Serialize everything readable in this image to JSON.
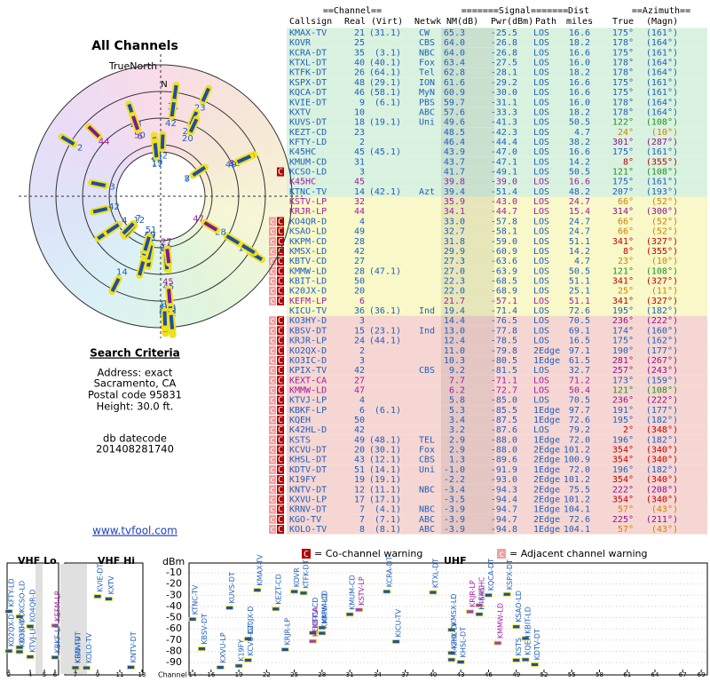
{
  "left": {
    "title": "All Channels",
    "north_label": "TrueNorth",
    "n_mark": "N",
    "search_title": "Search Criteria",
    "search_lines": [
      "Address: exact",
      "Sacramento, CA",
      "Postal code 95831",
      "Height: 30.0 ft."
    ],
    "db_label": "db datecode",
    "db_code": "201408281740",
    "link": "www.tvfool.com"
  },
  "table": {
    "group_headers": [
      "==Channel==",
      "=======Signal=======",
      "Dist",
      "==Azimuth=="
    ],
    "headers": [
      "Callsign",
      "Real",
      "(Virt)",
      "Netwk",
      "NM(dB)",
      "Pwr(dBm)",
      "Path",
      "miles",
      "True",
      "(Magn)"
    ],
    "rows": [
      [
        "KMAX-TV",
        "21",
        "(31.1)",
        "CW",
        "65.3",
        "-25.5",
        "LOS",
        "16.6",
        "175°",
        "(161°)"
      ],
      [
        "KOVR",
        "25",
        null,
        "CBS",
        "64.0",
        "-26.8",
        "LOS",
        "18.2",
        "178°",
        "(164°)"
      ],
      [
        "KCRA-DT",
        "35",
        "(3.1)",
        "NBC",
        "64.0",
        "-26.8",
        "LOS",
        "16.6",
        "175°",
        "(161°)"
      ],
      [
        "KTXL-DT",
        "40",
        "(40.1)",
        "Fox",
        "63.4",
        "-27.5",
        "LOS",
        "16.0",
        "178°",
        "(164°)"
      ],
      [
        "KTFK-DT",
        "26",
        "(64.1)",
        "Tel",
        "62.8",
        "-28.1",
        "LOS",
        "18.2",
        "178°",
        "(164°)"
      ],
      [
        "KSPX-DT",
        "48",
        "(29.1)",
        "ION",
        "61.6",
        "-29.2",
        "LOS",
        "16.6",
        "175°",
        "(161°)"
      ],
      [
        "KQCA-DT",
        "46",
        "(58.1)",
        "MyN",
        "60.9",
        "-30.0",
        "LOS",
        "16.6",
        "175°",
        "(161°)"
      ],
      [
        "KVIE-DT",
        "9",
        "(6.1)",
        "PBS",
        "59.7",
        "-31.1",
        "LOS",
        "16.0",
        "178°",
        "(164°)"
      ],
      [
        "KXTV",
        "10",
        null,
        "ABC",
        "57.6",
        "-33.3",
        "LOS",
        "18.2",
        "178°",
        "(164°)"
      ],
      [
        "KUVS-DT",
        "18",
        "(19.1)",
        "Uni",
        "49.6",
        "-41.3",
        "LOS",
        "50.5",
        "122°",
        "(108°)"
      ],
      [
        "KEZT-CD",
        "23",
        null,
        null,
        "48.5",
        "-42.3",
        "LOS",
        "4.7",
        "24°",
        "(10°)"
      ],
      [
        "KFTY-LD",
        "2",
        null,
        null,
        "46.4",
        "-44.4",
        "LOS",
        "38.2",
        "301°",
        "(287°)"
      ],
      [
        "K45HC",
        "45",
        "(45.1)",
        null,
        "43.9",
        "-47.0",
        "LOS",
        "16.6",
        "175°",
        "(161°)"
      ],
      [
        "KMUM-CD",
        "31",
        null,
        null,
        "43.7",
        "-47.1",
        "LOS",
        "14.2",
        "8°",
        "(355°)"
      ],
      [
        "KCSO-LD",
        "3",
        null,
        null,
        "41.7",
        "-49.1",
        "LOS",
        "50.5",
        "121°",
        "(108°)"
      ],
      [
        "K45HC",
        "45",
        null,
        null,
        "39.8",
        "-39.0",
        "LOS",
        "16.6",
        "175°",
        "(161°)"
      ],
      [
        "KTNC-TV",
        "14",
        "(42.1)",
        "Azt",
        "39.4",
        "-51.4",
        "LOS",
        "48.2",
        "207°",
        "(193°)"
      ],
      [
        "KSTV-LP",
        "32",
        null,
        null,
        "35.9",
        "-43.0",
        "LOS",
        "24.7",
        "66°",
        "(52°)"
      ],
      [
        "KRJR-LP",
        "44",
        null,
        null,
        "34.1",
        "-44.7",
        "LOS",
        "15.4",
        "314°",
        "(300°)"
      ],
      [
        "KO4QR-D",
        "4",
        null,
        null,
        "33.0",
        "-57.8",
        "LOS",
        "24.7",
        "66°",
        "(52°)"
      ],
      [
        "KSAO-LD",
        "49",
        null,
        null,
        "32.7",
        "-58.1",
        "LOS",
        "24.7",
        "66°",
        "(52°)"
      ],
      [
        "KKPM-CD",
        "28",
        null,
        null,
        "31.8",
        "-59.0",
        "LOS",
        "51.1",
        "341°",
        "(327°)"
      ],
      [
        "KMSX-LD",
        "42",
        null,
        null,
        "29.9",
        "-60.9",
        "LOS",
        "14.2",
        "8°",
        "(355°)"
      ],
      [
        "KBTV-CD",
        "27",
        null,
        null,
        "27.3",
        "-63.6",
        "LOS",
        "4.7",
        "23°",
        "(10°)"
      ],
      [
        "KMMW-LD",
        "28",
        "(47.1)",
        null,
        "27.0",
        "-63.9",
        "LOS",
        "50.5",
        "121°",
        "(108°)"
      ],
      [
        "KBIT-LD",
        "50",
        null,
        null,
        "22.3",
        "-68.5",
        "LOS",
        "51.1",
        "341°",
        "(327°)"
      ],
      [
        "K20JX-D",
        "20",
        null,
        null,
        "22.0",
        "-68.9",
        "LOS",
        "25.1",
        "25°",
        "(11°)"
      ],
      [
        "KEFM-LP",
        "6",
        null,
        null,
        "21.7",
        "-57.1",
        "LOS",
        "51.1",
        "341°",
        "(327°)"
      ],
      [
        "KICU-TV",
        "36",
        "(36.1)",
        "Ind",
        "19.4",
        "-71.4",
        "LOS",
        "72.6",
        "195°",
        "(182°)"
      ],
      [
        "KO3HY-D",
        "3",
        null,
        null,
        "14.4",
        "-76.5",
        "LOS",
        "70.5",
        "236°",
        "(222°)"
      ],
      [
        "KBSV-DT",
        "15",
        "(23.1)",
        "Ind",
        "13.0",
        "-77.8",
        "LOS",
        "69.1",
        "174°",
        "(160°)"
      ],
      [
        "KRJR-LP",
        "24",
        "(44.1)",
        null,
        "12.4",
        "-78.5",
        "LOS",
        "16.5",
        "175°",
        "(162°)"
      ],
      [
        "KO2QX-D",
        "2",
        null,
        null,
        "11.0",
        "-79.8",
        "2Edge",
        "97.1",
        "190°",
        "(177°)"
      ],
      [
        "KO3IC-D",
        "3",
        null,
        null,
        "10.3",
        "-80.5",
        "1Edge",
        "61.5",
        "281°",
        "(267°)"
      ],
      [
        "KPIX-TV",
        "42",
        null,
        "CBS",
        "9.2",
        "-81.5",
        "LOS",
        "32.7",
        "257°",
        "(243°)"
      ],
      [
        "KEXT-CA",
        "27",
        null,
        null,
        "7.7",
        "-71.1",
        "LOS",
        "71.2",
        "173°",
        "(159°)"
      ],
      [
        "KMMW-LD",
        "47",
        null,
        null,
        "6.2",
        "-72.7",
        "LOS",
        "50.4",
        "121°",
        "(108°)"
      ],
      [
        "KTVJ-LP",
        "4",
        null,
        null,
        "5.8",
        "-85.0",
        "LOS",
        "70.5",
        "236°",
        "(222°)"
      ],
      [
        "KBKF-LP",
        "6",
        "(6.1)",
        null,
        "5.3",
        "-85.5",
        "1Edge",
        "97.7",
        "191°",
        "(177°)"
      ],
      [
        "KQEH",
        "50",
        null,
        null,
        "3.4",
        "-87.5",
        "1Edge",
        "72.6",
        "195°",
        "(182°)"
      ],
      [
        "K42HL-D",
        "42",
        null,
        null,
        "3.2",
        "-87.6",
        "LOS",
        "79.2",
        "2°",
        "(348°)"
      ],
      [
        "KSTS",
        "49",
        "(48.1)",
        "TEL",
        "2.9",
        "-88.0",
        "1Edge",
        "72.0",
        "196°",
        "(182°)"
      ],
      [
        "KCVU-DT",
        "20",
        "(30.1)",
        "Fox",
        "2.9",
        "-88.0",
        "2Edge",
        "101.2",
        "354°",
        "(340°)"
      ],
      [
        "KHSL-DT",
        "43",
        "(12.1)",
        "CBS",
        "1.3",
        "-89.6",
        "2Edge",
        "100.9",
        "354°",
        "(340°)"
      ],
      [
        "KDTV-DT",
        "51",
        "(14.1)",
        "Uni",
        "-1.0",
        "-91.9",
        "1Edge",
        "72.0",
        "196°",
        "(182°)"
      ],
      [
        "K19FY",
        "19",
        "(19.1)",
        null,
        "-2.2",
        "-93.0",
        "2Edge",
        "101.2",
        "354°",
        "(340°)"
      ],
      [
        "KNTV-DT",
        "12",
        "(11.1)",
        "NBC",
        "-3.4",
        "-94.3",
        "2Edge",
        "75.5",
        "222°",
        "(208°)"
      ],
      [
        "KXVU-LP",
        "17",
        "(17.1)",
        null,
        "-3.5",
        "-94.4",
        "2Edge",
        "101.2",
        "354°",
        "(340°)"
      ],
      [
        "KRNV-DT",
        "7",
        "(4.1)",
        "NBC",
        "-3.9",
        "-94.7",
        "1Edge",
        "104.1",
        "57°",
        "(43°)"
      ],
      [
        "KGO-TV",
        "7",
        "(7.1)",
        "ABC",
        "-3.9",
        "-94.7",
        "2Edge",
        "72.6",
        "225°",
        "(211°)"
      ],
      [
        "KOLO-TV",
        "8",
        "(8.1)",
        "ABC",
        "-3.9",
        "-94.8",
        "1Edge",
        "104.1",
        "57°",
        "(43°)"
      ]
    ],
    "warnings": [
      null,
      null,
      null,
      null,
      null,
      null,
      null,
      null,
      null,
      null,
      null,
      null,
      null,
      null,
      "C",
      null,
      null,
      null,
      null,
      "cC",
      "cC",
      "cC",
      "cC",
      "cC",
      "cC",
      "cC",
      "cC",
      "cC",
      null,
      "cC",
      "cC",
      "cC",
      "cC",
      "cC",
      "cC",
      "cC",
      "cC",
      "cC",
      "cC",
      "cC",
      "cC",
      "cC",
      "cC",
      "cC",
      "cC",
      "cC",
      "cC",
      "cC",
      "cC",
      "cC",
      "cC"
    ],
    "row_colors": [
      "#1f5fbf",
      "#1f5fbf",
      "#1f5fbf",
      "#1f5fbf",
      "#1f5fbf",
      "#1f5fbf",
      "#1f5fbf",
      "#1f5fbf",
      "#1f5fbf",
      "#1f5fbf",
      "#1f5fbf",
      "#1f5fbf",
      "#1f5fbf",
      "#1f5fbf",
      "#1f5fbf",
      "#a020a0",
      "#1f5fbf",
      "#a020a0",
      "#a020a0",
      "#1f5fbf",
      "#1f5fbf",
      "#1f5fbf",
      "#1f5fbf",
      "#1f5fbf",
      "#1f5fbf",
      "#1f5fbf",
      "#1f5fbf",
      "#a020a0",
      "#1f5fbf",
      "#1f5fbf",
      "#1f5fbf",
      "#1f5fbf",
      "#1f5fbf",
      "#1f5fbf",
      "#1f5fbf",
      "#a020a0",
      "#a020a0",
      "#1f5fbf",
      "#1f5fbf",
      "#1f5fbf",
      "#1f5fbf",
      "#1f5fbf",
      "#1f5fbf",
      "#1f5fbf",
      "#1f5fbf",
      "#1f5fbf",
      "#1f5fbf",
      "#1f5fbf",
      "#1f5fbf",
      "#1f5fbf",
      "#1f5fbf"
    ],
    "row_bg": [
      "#d9f2df",
      "#d9f2df",
      "#d9f2df",
      "#d9f2df",
      "#d9f2df",
      "#d9f2df",
      "#d9f2df",
      "#d9f2df",
      "#d9f2df",
      "#d9f2df",
      "#d9f2df",
      "#d9f2df",
      "#d9f2df",
      "#d9f2df",
      "#d9f2df",
      "#d9f2df",
      "#d9f2df",
      "#f8f8c8",
      "#f8f8c8",
      "#f8f8c8",
      "#f8f8c8",
      "#f8f8c8",
      "#f8f8c8",
      "#f8f8c8",
      "#f8f8c8",
      "#f8f8c8",
      "#f8f8c8",
      "#f8f8c8",
      "#f8f8c8",
      "#f6d6d2",
      "#f6d6d2",
      "#f6d6d2",
      "#f6d6d2",
      "#f6d6d2",
      "#f6d6d2",
      "#f6d6d2",
      "#f6d6d2",
      "#f6d6d2",
      "#f6d6d2",
      "#f6d6d2",
      "#f6d6d2",
      "#f6d6d2",
      "#f6d6d2",
      "#f6d6d2",
      "#f6d6d2",
      "#f6d6d2",
      "#f6d6d2",
      "#f6d6d2",
      "#f6d6d2",
      "#f6d6d2",
      "#f6d6d2"
    ],
    "az_colors": [
      "#1f5fbf",
      "#1f5fbf",
      "#1f5fbf",
      "#1f5fbf",
      "#1f5fbf",
      "#1f5fbf",
      "#1f5fbf",
      "#1f5fbf",
      "#1f5fbf",
      "#209020",
      "#d08000",
      "#901090",
      "#1f5fbf",
      "#c00000",
      "#209020",
      "#1f5fbf",
      "#1f5fbf",
      "#d08000",
      "#901090",
      "#d08000",
      "#d08000",
      "#c00000",
      "#c00000",
      "#d08000",
      "#209020",
      "#c00000",
      "#d08000",
      "#c00000",
      "#1f5fbf",
      "#901090",
      "#1f5fbf",
      "#1f5fbf",
      "#1f5fbf",
      "#901090",
      "#901090",
      "#1f5fbf",
      "#209020",
      "#901090",
      "#1f5fbf",
      "#1f5fbf",
      "#c00000",
      "#1f5fbf",
      "#c00000",
      "#c00000",
      "#1f5fbf",
      "#c00000",
      "#901090",
      "#c00000",
      "#d08000",
      "#901090",
      "#d08000"
    ]
  },
  "spectrum": {
    "bands": [
      "VHF Lo",
      "VHF Hi",
      "UHF"
    ],
    "ylabel": "dBm",
    "xlabel": "Channel",
    "ylim": [
      -10,
      -90
    ],
    "yticks": [
      -10,
      -20,
      -30,
      -40,
      -50,
      -60,
      -70,
      -80,
      -90
    ],
    "channel_ticks": [
      2,
      4,
      5,
      6,
      7,
      9,
      11,
      13,
      14,
      16,
      19,
      22,
      25,
      28,
      31,
      34,
      37,
      40,
      43,
      46,
      49,
      52,
      55,
      58,
      61,
      64,
      67,
      69
    ],
    "legend": [
      {
        "symbol": "C",
        "label": "= Co-channel warning"
      },
      {
        "symbol": "c",
        "label": "= Adjacent channel warning"
      }
    ]
  }
}
